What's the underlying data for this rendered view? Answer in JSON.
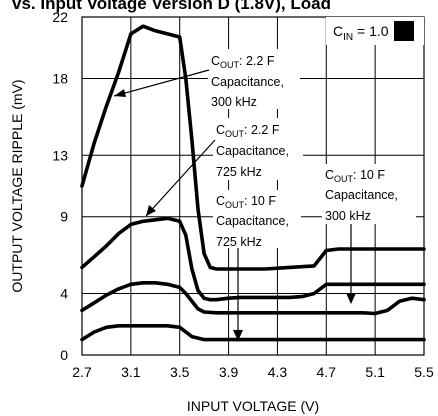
{
  "chart_data": {
    "type": "line",
    "title": "vs. Input Voltage Version D (1.8V), Load",
    "xlabel": "INPUT VOLTAGE (V)",
    "ylabel": "OUTPUT VOLTAGE RIPPLE (mV)",
    "xlim": [
      2.7,
      5.5
    ],
    "ylim": [
      0,
      22
    ],
    "x_ticks": [
      "2.7",
      "3.1",
      "3.5",
      "3.9",
      "4.3",
      "4.7",
      "5.1",
      "5.5"
    ],
    "y_ticks": [
      "0",
      "4",
      "9",
      "13",
      "18",
      "22"
    ],
    "grid": true,
    "legend_box": {
      "text": "C",
      "sub": "IN",
      "rest": " = 1.0",
      "swatch_color": "#000000"
    },
    "annotations": [
      {
        "sub": "OUT",
        "lines": [
          "C",
          ": 2.2   F",
          "Capacitance,",
          "300 kHz"
        ]
      },
      {
        "sub": "OUT",
        "lines": [
          "C",
          ": 2.2   F",
          "Capacitance,",
          "725 kHz"
        ]
      },
      {
        "sub": "OUT",
        "lines": [
          "C",
          ": 10   F",
          "Capacitance,",
          "725 kHz"
        ]
      },
      {
        "sub": "OUT",
        "lines": [
          "C",
          ": 10   F",
          "Capacitance,",
          "300 kHz"
        ]
      }
    ],
    "series": [
      {
        "x": [
          2.7,
          2.8,
          2.9,
          3.0,
          3.1,
          3.2,
          3.3,
          3.4,
          3.5,
          3.55,
          3.6,
          3.65,
          3.7,
          3.75,
          3.8,
          3.9,
          4.0,
          4.2,
          4.4,
          4.5,
          4.6,
          4.7,
          4.8,
          5.0,
          5.2,
          5.4,
          5.5
        ],
        "values": [
          11.0,
          13.8,
          16.2,
          18.4,
          20.9,
          21.4,
          21.1,
          20.9,
          20.7,
          18.0,
          14.0,
          9.5,
          6.6,
          5.7,
          5.6,
          5.6,
          5.6,
          5.6,
          5.7,
          5.75,
          5.8,
          6.8,
          6.9,
          6.9,
          6.9,
          6.9,
          6.9
        ]
      },
      {
        "x": [
          2.7,
          2.8,
          2.9,
          3.0,
          3.1,
          3.2,
          3.3,
          3.4,
          3.5,
          3.55,
          3.6,
          3.65,
          3.7,
          3.75,
          3.8,
          3.9,
          4.0,
          4.2,
          4.4,
          4.5,
          4.6,
          4.7,
          4.8,
          5.0,
          5.2,
          5.4,
          5.5
        ],
        "values": [
          5.7,
          6.4,
          7.1,
          7.9,
          8.5,
          8.7,
          8.8,
          8.9,
          8.7,
          7.8,
          5.6,
          4.2,
          3.7,
          3.6,
          3.6,
          3.7,
          3.75,
          3.75,
          3.75,
          3.8,
          4.0,
          4.6,
          4.6,
          4.6,
          4.6,
          4.6,
          4.6
        ]
      },
      {
        "x": [
          2.7,
          2.8,
          2.9,
          3.0,
          3.1,
          3.2,
          3.3,
          3.4,
          3.5,
          3.55,
          3.6,
          3.65,
          3.7,
          3.8,
          3.9,
          4.0,
          4.2,
          4.4,
          4.6,
          4.8,
          5.0,
          5.1,
          5.2,
          5.3,
          5.4,
          5.5
        ],
        "values": [
          2.9,
          3.4,
          3.9,
          4.3,
          4.6,
          4.7,
          4.7,
          4.6,
          4.4,
          4.0,
          3.5,
          3.0,
          2.8,
          2.75,
          2.75,
          2.75,
          2.75,
          2.75,
          2.75,
          2.75,
          2.75,
          2.7,
          2.9,
          3.5,
          3.7,
          3.6
        ]
      },
      {
        "x": [
          2.7,
          2.8,
          2.9,
          3.0,
          3.1,
          3.2,
          3.3,
          3.4,
          3.5,
          3.6,
          3.7,
          3.8,
          3.9,
          4.1,
          4.3,
          4.5,
          4.7,
          4.9,
          5.1,
          5.3,
          5.5
        ],
        "values": [
          1.0,
          1.5,
          1.8,
          1.9,
          1.9,
          1.9,
          1.9,
          1.9,
          1.8,
          1.2,
          1.0,
          1.0,
          1.0,
          1.0,
          1.0,
          1.0,
          1.0,
          1.0,
          1.0,
          1.0,
          1.0
        ]
      }
    ]
  }
}
